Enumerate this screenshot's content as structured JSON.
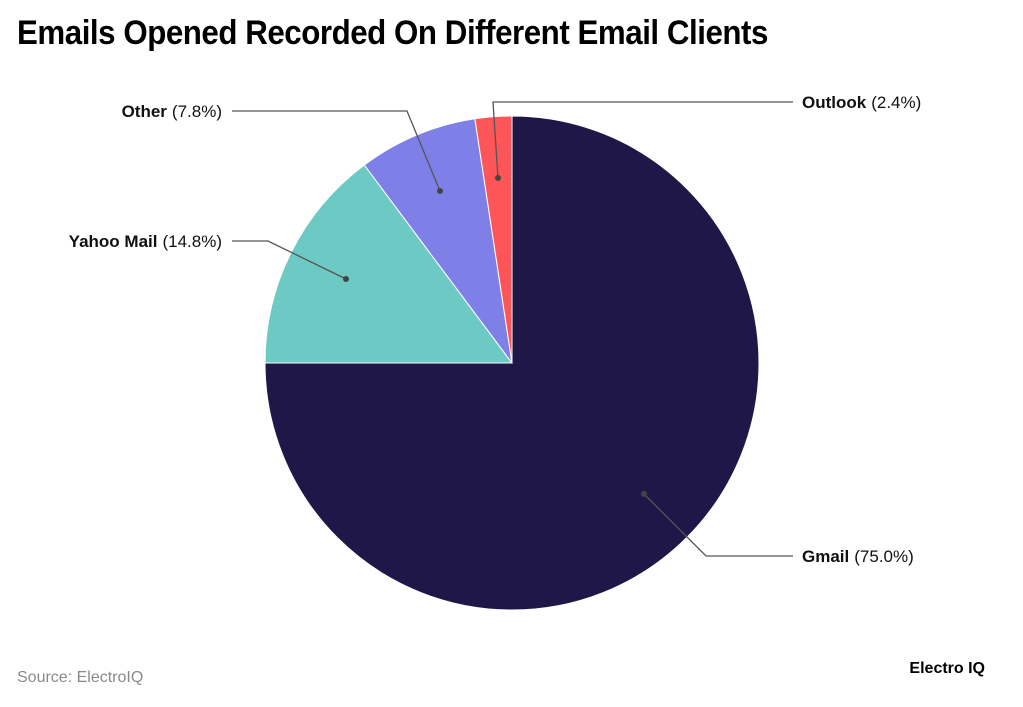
{
  "title": "Emails Opened Recorded On Different Email Clients",
  "source": "Source: ElectroIQ",
  "brand": "Electro IQ",
  "chart_data": {
    "type": "pie",
    "title": "Emails Opened Recorded On Different Email Clients",
    "categories": [
      "Gmail",
      "Yahoo Mail",
      "Other",
      "Outlook"
    ],
    "values": [
      75.0,
      14.8,
      7.8,
      2.4
    ],
    "unit": "%",
    "colors": [
      "#1f1748",
      "#6dc9c3",
      "#7e80e7",
      "#fe5558"
    ],
    "labels": [
      {
        "name": "Gmail",
        "value": "(75.0%)"
      },
      {
        "name": "Yahoo Mail",
        "value": "(14.8%)"
      },
      {
        "name": "Other",
        "value": "(7.8%)"
      },
      {
        "name": "Outlook",
        "value": "(2.4%)"
      }
    ],
    "legend": "none (callout labels)",
    "start_angle": "12 o'clock, clockwise"
  }
}
